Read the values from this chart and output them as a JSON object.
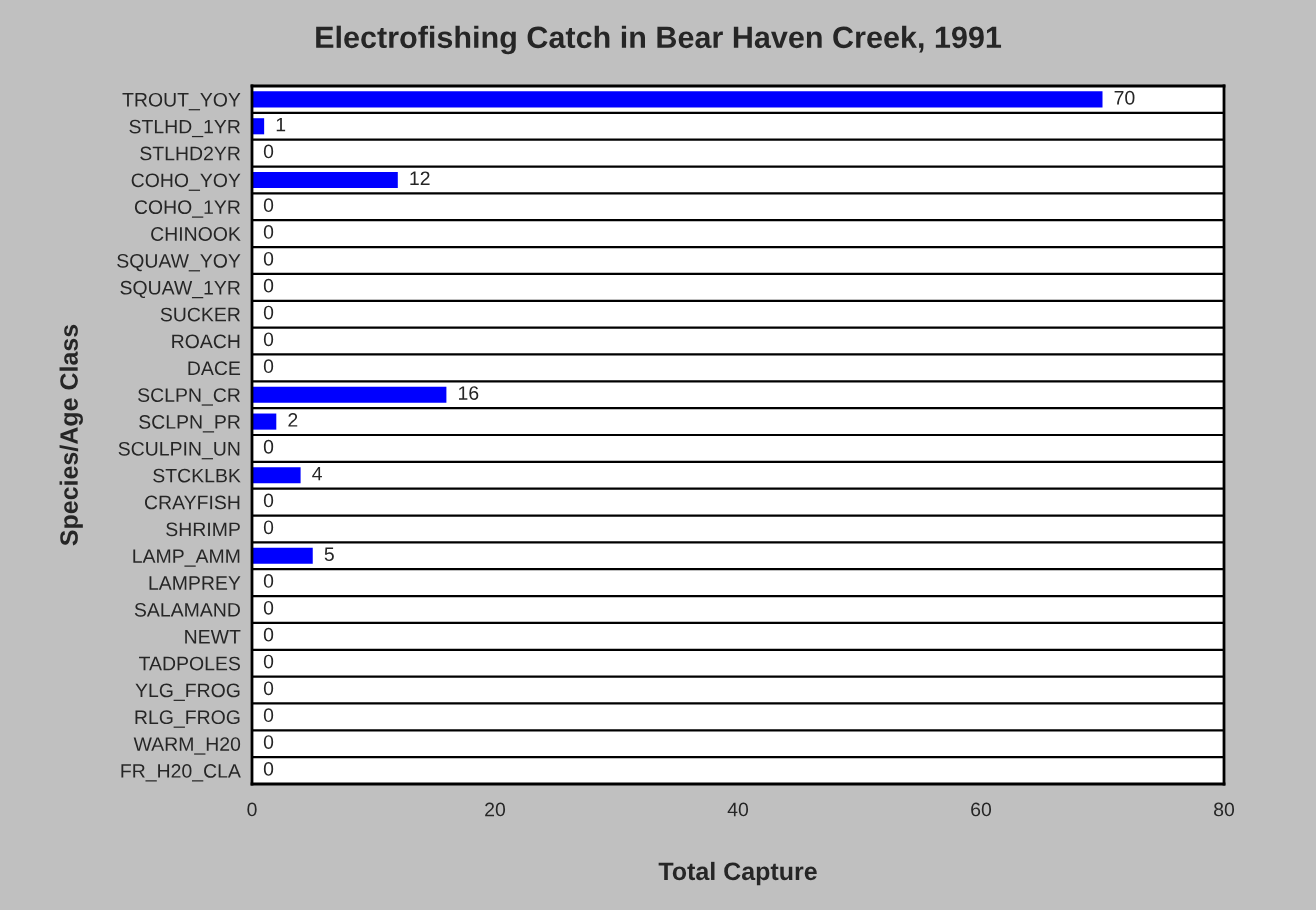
{
  "chart_data": {
    "type": "bar",
    "orientation": "horizontal",
    "title": "Electrofishing Catch in Bear Haven Creek, 1991",
    "xlabel": "Total Capture",
    "ylabel": "Species/Age Class",
    "categories": [
      "TROUT_YOY",
      "STLHD_1YR",
      "STLHD2YR",
      "COHO_YOY",
      "COHO_1YR",
      "CHINOOK",
      "SQUAW_YOY",
      "SQUAW_1YR",
      "SUCKER",
      "ROACH",
      "DACE",
      "SCLPN_CR",
      "SCLPN_PR",
      "SCULPIN_UN",
      "STCKLBK",
      "CRAYFISH",
      "SHRIMP",
      "LAMP_AMM",
      "LAMPREY",
      "SALAMAND",
      "NEWT",
      "TADPOLES",
      "YLG_FROG",
      "RLG_FROG",
      "WARM_H20",
      "FR_H20_CLA"
    ],
    "values": [
      70,
      1,
      0,
      12,
      0,
      0,
      0,
      0,
      0,
      0,
      0,
      16,
      2,
      0,
      4,
      0,
      0,
      5,
      0,
      0,
      0,
      0,
      0,
      0,
      0,
      0
    ],
    "color": "#0000ff",
    "xlim": [
      0,
      80
    ],
    "xticks": [
      0,
      20,
      40,
      60,
      80
    ],
    "data_labels": true,
    "grid": "y",
    "legend": false
  }
}
